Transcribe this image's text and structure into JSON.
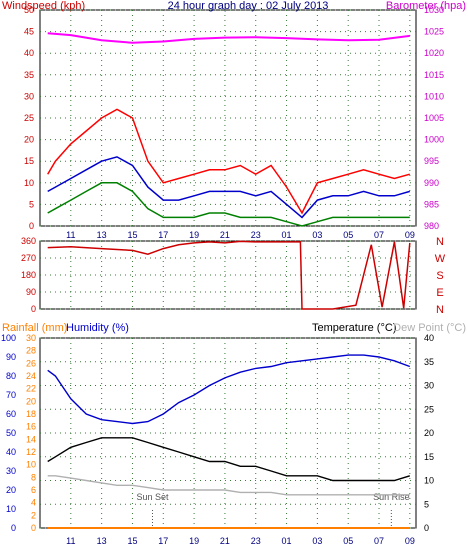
{
  "chart_data": [
    {
      "type": "line",
      "title": "24 hour graph day : 02 July 2013",
      "ylabel_left": "Windspeed (kph)",
      "ylabel_right": "Barometer (hpa)",
      "x_ticks": [
        "11",
        "13",
        "15",
        "17",
        "19",
        "21",
        "23",
        "01",
        "03",
        "05",
        "07",
        "09"
      ],
      "ylim_left": [
        0,
        50
      ],
      "left_ticks": [
        "0",
        "5",
        "10",
        "15",
        "20",
        "25",
        "30",
        "35",
        "40",
        "45",
        "50"
      ],
      "ylim_right": [
        980,
        1030
      ],
      "right_ticks": [
        "980",
        "985",
        "990",
        "995",
        "1000",
        "1005",
        "1010",
        "1015",
        "1020",
        "1025",
        "1030"
      ],
      "grid": true,
      "colors": {
        "gust": "#ff0000",
        "avg_speed": "#0000cc",
        "min_speed": "#008000",
        "barometer": "#ff00ff",
        "left_axis": "#cc0000",
        "right_axis": "#cc00cc"
      },
      "series": [
        {
          "name": "gust",
          "x": [
            9.5,
            10,
            11,
            12,
            13,
            14,
            15,
            16,
            17,
            18,
            19,
            20,
            21,
            22,
            23,
            24,
            25,
            26,
            27,
            28,
            29,
            30,
            31,
            32,
            33
          ],
          "y": [
            12,
            15,
            19,
            22,
            25,
            27,
            25,
            15,
            10,
            11,
            12,
            13,
            13,
            14,
            12,
            14,
            9,
            3,
            10,
            11,
            12,
            13,
            12,
            11,
            12
          ]
        },
        {
          "name": "avg_speed",
          "x": [
            9.5,
            10,
            11,
            12,
            13,
            14,
            15,
            16,
            17,
            18,
            19,
            20,
            21,
            22,
            23,
            24,
            25,
            26,
            27,
            28,
            29,
            30,
            31,
            32,
            33
          ],
          "y": [
            8,
            9,
            11,
            13,
            15,
            16,
            14,
            9,
            6,
            6,
            7,
            8,
            8,
            8,
            7,
            8,
            5,
            2,
            6,
            7,
            7,
            8,
            7,
            7,
            8
          ]
        },
        {
          "name": "min_speed",
          "x": [
            9.5,
            10,
            11,
            12,
            13,
            14,
            15,
            16,
            17,
            18,
            19,
            20,
            21,
            22,
            23,
            24,
            25,
            26,
            27,
            28,
            29,
            30,
            31,
            32,
            33
          ],
          "y": [
            3,
            4,
            6,
            8,
            10,
            10,
            8,
            4,
            2,
            2,
            2,
            3,
            3,
            2,
            2,
            2,
            1,
            0,
            1,
            2,
            2,
            2,
            2,
            2,
            2
          ]
        },
        {
          "name": "barometer",
          "axis": "right",
          "x": [
            9.5,
            11,
            13,
            15,
            17,
            19,
            21,
            23,
            25,
            27,
            29,
            31,
            33
          ],
          "y": [
            1024.6,
            1024.2,
            1023.0,
            1022.4,
            1022.7,
            1023.3,
            1023.6,
            1023.7,
            1023.5,
            1023.2,
            1023.0,
            1023.1,
            1024.0
          ]
        }
      ]
    },
    {
      "type": "scatter",
      "x_ticks": [
        "11",
        "13",
        "15",
        "17",
        "19",
        "21",
        "23",
        "01",
        "03",
        "05",
        "07",
        "09"
      ],
      "ylim": [
        0,
        360
      ],
      "y_ticks": [
        "0",
        "90",
        "180",
        "270",
        "360"
      ],
      "right_labels": [
        "N",
        "W",
        "S",
        "E",
        "N"
      ],
      "grid": true,
      "series": [
        {
          "name": "wind_direction",
          "x": [
            9.5,
            11,
            13,
            15,
            16,
            17,
            18,
            19,
            20,
            21,
            22,
            23,
            24,
            25,
            25.9,
            26,
            28,
            29.5,
            30.5,
            31.2,
            32,
            32.6,
            33
          ],
          "y": [
            325,
            330,
            320,
            310,
            290,
            320,
            340,
            350,
            355,
            350,
            358,
            355,
            355,
            355,
            355,
            0,
            0,
            20,
            340,
            10,
            355,
            5,
            350
          ]
        }
      ]
    },
    {
      "type": "line",
      "ylabel_rainfall": "Rainfall (mm)",
      "ylabel_humidity": "Humidity (%)",
      "ylabel_temperature": "Temperature (°C)",
      "ylabel_dewpoint": "Dew Point (°C)",
      "x_ticks": [
        "11",
        "13",
        "15",
        "17",
        "19",
        "21",
        "23",
        "01",
        "03",
        "05",
        "07",
        "09"
      ],
      "humidity_ticks": [
        "0",
        "10",
        "20",
        "30",
        "40",
        "50",
        "60",
        "70",
        "80",
        "90",
        "100"
      ],
      "rainfall_ticks": [
        "0",
        "2",
        "4",
        "6",
        "8",
        "10",
        "12",
        "14",
        "16",
        "18",
        "20",
        "22",
        "24",
        "26",
        "28",
        "30"
      ],
      "ylim_humidity": [
        0,
        100
      ],
      "ylim_rainfall": [
        0,
        30
      ],
      "ylim_temperature": [
        0,
        40
      ],
      "temperature_ticks": [
        "0",
        "5",
        "10",
        "15",
        "20",
        "25",
        "30",
        "35",
        "40"
      ],
      "grid": true,
      "annotations": [
        {
          "text": "Sun Set",
          "x": 16.3
        },
        {
          "text": "Sun Rise",
          "x": 31.8
        }
      ],
      "series": [
        {
          "name": "humidity",
          "axis": "humidity",
          "x": [
            9.5,
            10,
            11,
            12,
            13,
            14,
            15,
            16,
            17,
            18,
            19,
            20,
            21,
            22,
            23,
            24,
            25,
            26,
            27,
            28,
            29,
            30,
            31,
            32,
            33
          ],
          "y": [
            83,
            80,
            68,
            60,
            57,
            56,
            55,
            56,
            60,
            66,
            70,
            75,
            79,
            82,
            84,
            85,
            87,
            88,
            89,
            90,
            91,
            91,
            90,
            88,
            85
          ]
        },
        {
          "name": "temperature",
          "axis": "temperature",
          "x": [
            9.5,
            10,
            11,
            12,
            13,
            14,
            15,
            16,
            17,
            18,
            19,
            20,
            21,
            22,
            23,
            24,
            25,
            26,
            27,
            28,
            29,
            30,
            31,
            32,
            33
          ],
          "y": [
            14,
            15,
            17,
            18,
            19,
            19,
            19,
            18,
            17,
            16,
            15,
            14,
            14,
            13,
            13,
            12,
            11,
            11,
            11,
            10,
            10,
            10,
            10,
            10,
            11
          ]
        },
        {
          "name": "dew_point",
          "axis": "temperature",
          "x": [
            9.5,
            10,
            11,
            12,
            13,
            14,
            15,
            16,
            17,
            18,
            19,
            20,
            21,
            22,
            23,
            24,
            25,
            26,
            27,
            28,
            29,
            30,
            31,
            32,
            33
          ],
          "y": [
            11,
            11,
            10.5,
            10,
            9.5,
            9,
            9,
            8.5,
            8,
            8,
            8,
            8,
            8,
            7.5,
            7.5,
            7.5,
            7,
            7,
            7,
            7,
            7,
            7,
            7,
            7,
            7
          ]
        },
        {
          "name": "rainfall",
          "axis": "rainfall",
          "x": [
            9.5,
            33
          ],
          "y": [
            0,
            0
          ]
        }
      ],
      "colors": {
        "humidity": "#0000cc",
        "temperature": "#000000",
        "dew_point": "#b0b0b0",
        "rainfall": "#ff8000"
      }
    }
  ]
}
